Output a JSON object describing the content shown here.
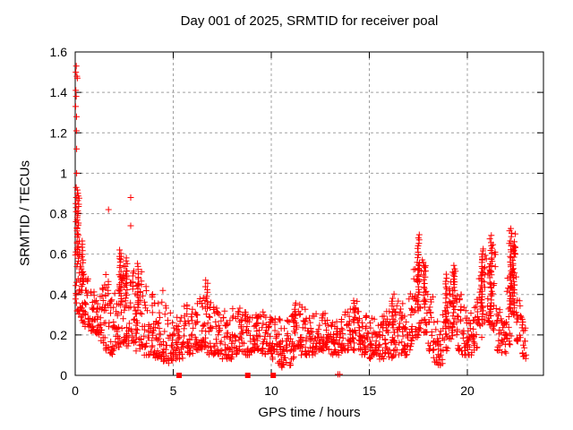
{
  "chart_data": {
    "type": "scatter",
    "title": "Day 001 of 2025, SRMTID for receiver poal",
    "xlabel": "GPS time / hours",
    "ylabel": "SRMTID / TECUs",
    "xlim": [
      0,
      23.9
    ],
    "ylim": [
      0,
      1.6
    ],
    "x_ticks": [
      0,
      5,
      10,
      15,
      20
    ],
    "x_tick_labels": [
      "0",
      "5",
      "10",
      "15",
      "20"
    ],
    "y_ticks": [
      0,
      0.2,
      0.4,
      0.6,
      0.8,
      1.0,
      1.2,
      1.4,
      1.6
    ],
    "y_tick_labels": [
      "0",
      "0.2",
      "0.4",
      "0.6",
      "0.8",
      "1",
      "1.2",
      "1.4",
      "1.6"
    ],
    "grid": "dashed-gray-at-major-ticks",
    "legend": "none",
    "marker": "plus",
    "marker_color": "#ff0000",
    "grid_color": "#a0a0a0",
    "axis_color": "#000000",
    "startup_column": {
      "x_range": [
        0.02,
        0.12
      ],
      "values": [
        1.53,
        1.5,
        1.48,
        1.47,
        1.41,
        1.38,
        1.33,
        1.28,
        1.21,
        1.12,
        1.0,
        0.93,
        0.9,
        0.88,
        0.85,
        0.83,
        0.81,
        0.78,
        0.76,
        0.73,
        0.7,
        0.66,
        0.63,
        0.6
      ]
    },
    "bands_x0_lo_hi_n": [
      [
        0.0,
        0.3,
        0.62,
        22
      ],
      [
        0.25,
        0.26,
        0.55,
        20
      ],
      [
        0.5,
        0.24,
        0.5,
        20
      ],
      [
        0.75,
        0.22,
        0.46,
        20
      ],
      [
        1.0,
        0.2,
        0.44,
        22
      ],
      [
        1.25,
        0.16,
        0.45,
        20
      ],
      [
        1.5,
        0.12,
        0.5,
        22
      ],
      [
        1.75,
        0.1,
        0.4,
        20
      ],
      [
        2.0,
        0.14,
        0.48,
        22
      ],
      [
        2.25,
        0.15,
        0.6,
        22
      ],
      [
        2.5,
        0.14,
        0.55,
        20
      ],
      [
        2.75,
        0.15,
        0.58,
        20
      ],
      [
        3.0,
        0.12,
        0.45,
        20
      ],
      [
        3.25,
        0.12,
        0.52,
        20
      ],
      [
        3.5,
        0.1,
        0.45,
        20
      ],
      [
        3.75,
        0.1,
        0.42,
        18
      ],
      [
        4.0,
        0.08,
        0.4,
        20
      ],
      [
        4.25,
        0.08,
        0.42,
        20
      ],
      [
        4.5,
        0.07,
        0.35,
        20
      ],
      [
        4.75,
        0.06,
        0.32,
        18
      ],
      [
        5.0,
        0.08,
        0.3,
        18
      ],
      [
        5.25,
        0.08,
        0.32,
        18
      ],
      [
        5.5,
        0.1,
        0.35,
        18
      ],
      [
        5.75,
        0.1,
        0.33,
        18
      ],
      [
        6.0,
        0.12,
        0.36,
        18
      ],
      [
        6.25,
        0.12,
        0.38,
        18
      ],
      [
        6.5,
        0.1,
        0.4,
        18
      ],
      [
        6.75,
        0.1,
        0.36,
        18
      ],
      [
        7.0,
        0.1,
        0.36,
        18
      ],
      [
        7.25,
        0.1,
        0.33,
        18
      ],
      [
        7.5,
        0.08,
        0.32,
        18
      ],
      [
        7.75,
        0.08,
        0.3,
        18
      ],
      [
        8.0,
        0.1,
        0.33,
        18
      ],
      [
        8.25,
        0.12,
        0.36,
        18
      ],
      [
        8.5,
        0.1,
        0.33,
        18
      ],
      [
        8.75,
        0.1,
        0.31,
        18
      ],
      [
        9.0,
        0.12,
        0.35,
        18
      ],
      [
        9.25,
        0.12,
        0.33,
        18
      ],
      [
        9.5,
        0.1,
        0.32,
        18
      ],
      [
        9.75,
        0.1,
        0.3,
        18
      ],
      [
        10.0,
        0.08,
        0.3,
        18
      ],
      [
        10.25,
        0.06,
        0.28,
        18
      ],
      [
        10.5,
        0.03,
        0.26,
        18
      ],
      [
        10.75,
        0.04,
        0.28,
        18
      ],
      [
        11.0,
        0.08,
        0.32,
        18
      ],
      [
        11.25,
        0.12,
        0.36,
        18
      ],
      [
        11.5,
        0.1,
        0.34,
        18
      ],
      [
        11.75,
        0.1,
        0.3,
        18
      ],
      [
        12.0,
        0.1,
        0.3,
        18
      ],
      [
        12.25,
        0.12,
        0.32,
        18
      ],
      [
        12.5,
        0.12,
        0.32,
        18
      ],
      [
        12.75,
        0.12,
        0.3,
        18
      ],
      [
        13.0,
        0.1,
        0.3,
        18
      ],
      [
        13.25,
        0.1,
        0.28,
        18
      ],
      [
        13.5,
        0.12,
        0.3,
        18
      ],
      [
        13.75,
        0.12,
        0.32,
        18
      ],
      [
        14.0,
        0.12,
        0.34,
        18
      ],
      [
        14.25,
        0.12,
        0.37,
        18
      ],
      [
        14.5,
        0.1,
        0.3,
        18
      ],
      [
        14.75,
        0.1,
        0.3,
        18
      ],
      [
        15.0,
        0.08,
        0.3,
        18
      ],
      [
        15.25,
        0.1,
        0.32,
        18
      ],
      [
        15.5,
        0.08,
        0.3,
        18
      ],
      [
        15.75,
        0.1,
        0.32,
        18
      ],
      [
        16.0,
        0.08,
        0.34,
        18
      ],
      [
        16.25,
        0.1,
        0.38,
        18
      ],
      [
        16.5,
        0.1,
        0.36,
        18
      ],
      [
        16.75,
        0.1,
        0.35,
        18
      ],
      [
        17.0,
        0.12,
        0.42,
        18
      ],
      [
        17.25,
        0.18,
        0.55,
        18
      ],
      [
        17.5,
        0.22,
        0.65,
        18
      ],
      [
        17.75,
        0.2,
        0.55,
        18
      ],
      [
        18.0,
        0.12,
        0.4,
        18
      ],
      [
        18.25,
        0.06,
        0.28,
        18
      ],
      [
        18.5,
        0.05,
        0.25,
        18
      ],
      [
        18.75,
        0.12,
        0.4,
        18
      ],
      [
        19.0,
        0.18,
        0.5,
        18
      ],
      [
        19.25,
        0.2,
        0.52,
        18
      ],
      [
        19.5,
        0.12,
        0.4,
        18
      ],
      [
        19.75,
        0.1,
        0.35,
        18
      ],
      [
        20.0,
        0.1,
        0.32,
        18
      ],
      [
        20.25,
        0.12,
        0.35,
        18
      ],
      [
        20.5,
        0.18,
        0.5,
        18
      ],
      [
        20.75,
        0.25,
        0.6,
        18
      ],
      [
        21.0,
        0.25,
        0.62,
        18
      ],
      [
        21.25,
        0.22,
        0.65,
        18
      ],
      [
        21.5,
        0.12,
        0.4,
        18
      ],
      [
        21.75,
        0.1,
        0.28,
        18
      ],
      [
        22.0,
        0.15,
        0.5,
        18
      ],
      [
        22.25,
        0.3,
        0.72,
        20
      ],
      [
        22.5,
        0.15,
        0.4,
        18
      ],
      [
        22.75,
        0.08,
        0.3,
        18
      ]
    ],
    "spikes_x_base_top": [
      [
        0.15,
        0.55,
        0.92
      ],
      [
        0.35,
        0.45,
        0.66
      ],
      [
        2.3,
        0.35,
        0.62
      ],
      [
        2.6,
        0.35,
        0.58
      ],
      [
        3.2,
        0.32,
        0.55
      ],
      [
        6.7,
        0.33,
        0.47
      ],
      [
        11.2,
        0.24,
        0.36
      ],
      [
        14.25,
        0.26,
        0.37
      ],
      [
        16.2,
        0.25,
        0.4
      ],
      [
        17.5,
        0.32,
        0.7
      ],
      [
        17.8,
        0.35,
        0.56
      ],
      [
        18.95,
        0.24,
        0.5
      ],
      [
        19.3,
        0.28,
        0.54
      ],
      [
        20.75,
        0.3,
        0.63
      ],
      [
        21.2,
        0.3,
        0.69
      ],
      [
        22.2,
        0.32,
        0.73
      ],
      [
        22.35,
        0.3,
        0.66
      ]
    ],
    "outlier_points": [
      [
        1.7,
        0.82
      ],
      [
        2.83,
        0.88
      ],
      [
        2.83,
        0.74
      ]
    ],
    "zero_square_markers_x": [
      5.3,
      8.8,
      10.1
    ],
    "near_zero_plus_markers_x": [
      13.4,
      13.49
    ]
  }
}
